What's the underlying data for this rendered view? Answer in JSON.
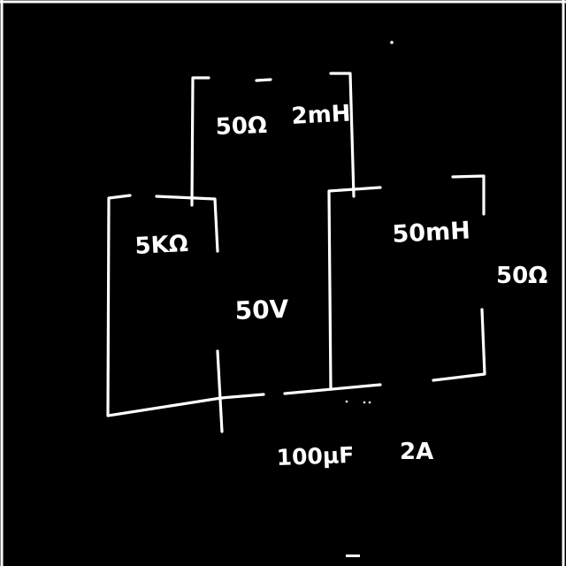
{
  "colors": {
    "background": "#000000",
    "ink": "#ffffff"
  },
  "labels": {
    "r_top": "50Ω",
    "l_top": "2mH",
    "r_left": "5KΩ",
    "v_source": "50V",
    "l_right": "50mH",
    "r_right": "50Ω",
    "capacitor": "100μF",
    "i_source": "2A"
  }
}
